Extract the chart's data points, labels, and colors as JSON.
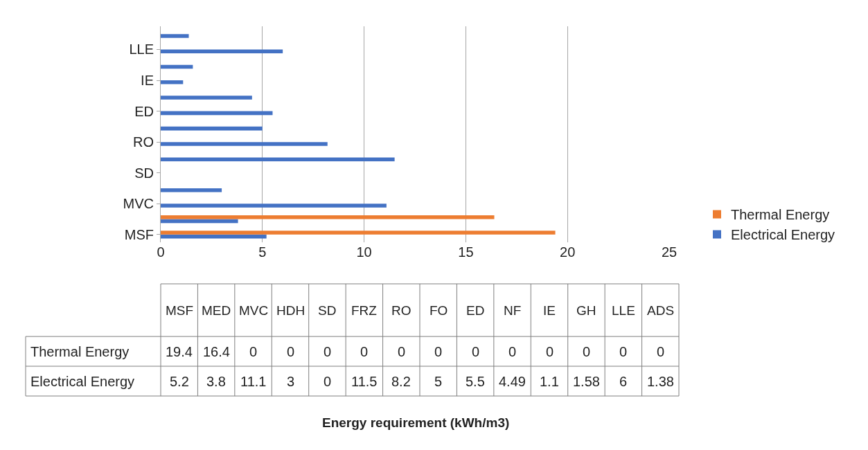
{
  "chart_data": [
    {
      "type": "bar",
      "orientation": "horizontal",
      "categories": [
        null,
        "LLE",
        null,
        "IE",
        null,
        "ED",
        null,
        "RO",
        null,
        "SD",
        null,
        "MVC",
        null,
        "MSF"
      ],
      "series": [
        {
          "name": "Electrical Energy",
          "color": "#4472c4",
          "values": [
            1.38,
            6,
            1.58,
            1.1,
            4.49,
            5.5,
            5,
            8.2,
            11.5,
            0,
            3,
            11.1,
            3.8,
            5.2
          ]
        },
        {
          "name": "Thermal Energy",
          "color": "#ed7d31",
          "values": [
            0,
            0,
            0,
            0,
            0,
            0,
            0,
            0,
            0,
            0,
            0,
            0,
            16.4,
            19.4
          ]
        }
      ],
      "xlim": [
        0,
        25
      ],
      "xticks": [
        0,
        5,
        10,
        15,
        20,
        25
      ],
      "grid": "x",
      "legend": "right",
      "annotations": [
        "Energy requirement (kWh/m3)"
      ]
    },
    {
      "type": "other",
      "categories": [
        "MSF",
        "MED",
        "MVC",
        "HDH",
        "SD",
        "FRZ",
        "RO",
        "FO",
        "ED",
        "NF",
        "IE",
        "GH",
        "LLE",
        "ADS"
      ],
      "series": [
        {
          "name": "Thermal Energy",
          "values": [
            19.4,
            16.4,
            0,
            0,
            0,
            0,
            0,
            0,
            0,
            0,
            0,
            0,
            0,
            0
          ]
        },
        {
          "name": "Electrical Energy",
          "values": [
            5.2,
            3.8,
            11.1,
            3,
            0,
            11.5,
            8.2,
            5,
            5.5,
            4.49,
            1.1,
            1.58,
            6,
            1.38
          ]
        }
      ],
      "data_labels": true
    }
  ]
}
